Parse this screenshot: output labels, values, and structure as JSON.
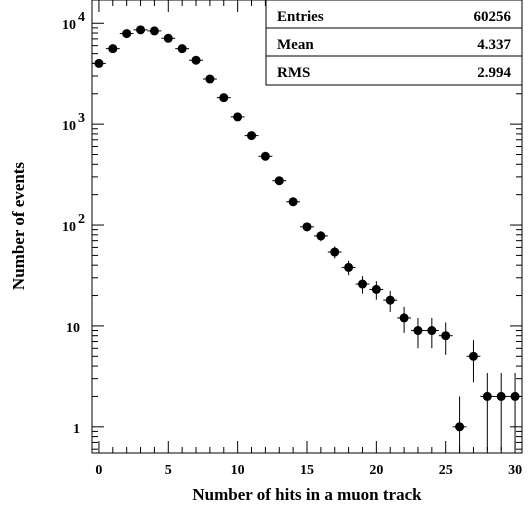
{
  "chart_data": {
    "type": "scatter",
    "xlabel": "Number of hits in a muon track",
    "ylabel": "Number of events",
    "xlim": [
      -0.5,
      30.5
    ],
    "ylim": [
      0.55,
      17000
    ],
    "yscale": "log",
    "grid": false,
    "xticks": [
      "0",
      "5",
      "10",
      "15",
      "20",
      "25",
      "30"
    ],
    "yticks": [
      {
        "value": 1,
        "base": "1",
        "exp": ""
      },
      {
        "value": 10,
        "base": "10",
        "exp": ""
      },
      {
        "value": 100,
        "base": "10",
        "exp": "2"
      },
      {
        "value": 1000,
        "base": "10",
        "exp": "3"
      },
      {
        "value": 10000,
        "base": "10",
        "exp": "4"
      }
    ],
    "series": [
      {
        "x": [
          0,
          1,
          2,
          3,
          4,
          5,
          6,
          7,
          8,
          9,
          10,
          11,
          12,
          13,
          14,
          15,
          16,
          17,
          18,
          19,
          20,
          21,
          22,
          23,
          24,
          25,
          26,
          27,
          28,
          29,
          30
        ],
        "y": [
          4000,
          5600,
          7900,
          8600,
          8400,
          7100,
          5600,
          4300,
          2800,
          1830,
          1180,
          770,
          480,
          275,
          170,
          96,
          78,
          54,
          38,
          26,
          23,
          18,
          12,
          9,
          9,
          8,
          1,
          5,
          2,
          2,
          2
        ]
      }
    ],
    "stats": [
      {
        "label": "Entries",
        "value": "60256"
      },
      {
        "label": "Mean",
        "value": "4.337"
      },
      {
        "label": "RMS",
        "value": "2.994"
      }
    ]
  }
}
